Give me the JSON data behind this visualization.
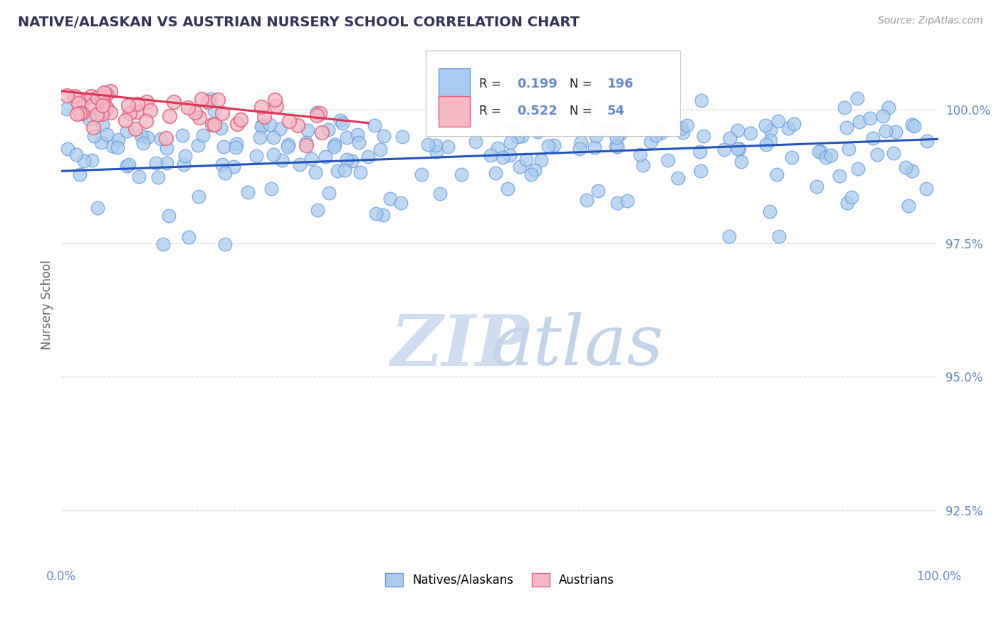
{
  "title": "NATIVE/ALASKAN VS AUSTRIAN NURSERY SCHOOL CORRELATION CHART",
  "source": "Source: ZipAtlas.com",
  "ylabel": "Nursery School",
  "x_range": [
    0,
    100
  ],
  "y_range": [
    91.5,
    101.2
  ],
  "y_ticks": [
    92.5,
    95.0,
    97.5,
    100.0
  ],
  "y_tick_labels": [
    "92.5%",
    "95.0%",
    "97.5%",
    "100.0%"
  ],
  "R_blue": 0.199,
  "N_blue": 196,
  "R_pink": 0.522,
  "N_pink": 54,
  "blue_color": "#A8CCF0",
  "blue_edge": "#6699DD",
  "pink_color": "#F5B8C4",
  "pink_edge": "#E06080",
  "trend_blue": "#2255BB",
  "trend_pink": "#DD3355",
  "blue_trend_x": [
    0,
    100
  ],
  "blue_trend_y": [
    98.85,
    99.45
  ],
  "pink_trend_x": [
    0,
    35
  ],
  "pink_trend_y": [
    100.35,
    99.75
  ],
  "watermark_zip_color": "#D0DCF0",
  "watermark_atlas_color": "#C4D4E8",
  "background_color": "#FFFFFF",
  "grid_color": "#CCCCCC",
  "title_color": "#333355",
  "axis_label_color": "#6688CC",
  "legend_box_color": "#EEEEEE",
  "legend_edge_color": "#BBBBBB"
}
